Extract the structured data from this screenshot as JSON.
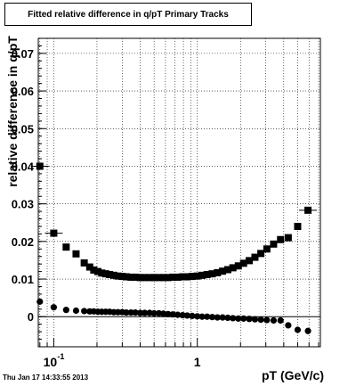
{
  "chart_data": {
    "type": "scatter",
    "title": "Fitted relative difference in q/pT  Primary Tracks",
    "xlabel": "pT (GeV/c)",
    "ylabel": "relative difference in q/pT",
    "x_scale": "log",
    "xlim": [
      0.078,
      7.2
    ],
    "ylim": [
      -0.008,
      0.074
    ],
    "grid": true,
    "x_tick_labels": [
      {
        "value": 0.1,
        "base": "10",
        "exp": "-1"
      },
      {
        "value": 1,
        "base": "1",
        "exp": ""
      }
    ],
    "y_ticks": [
      0,
      0.01,
      0.02,
      0.03,
      0.04,
      0.05,
      0.06,
      0.07
    ],
    "y_tick_labels": [
      "0",
      "0.01",
      "0.02",
      "0.03",
      "0.04",
      "0.05",
      "0.06",
      "0.07"
    ],
    "timestamp": "Thu Jan 17 14:33:55 2013",
    "series": [
      {
        "marker": "square",
        "x": [
          0.08,
          0.1,
          0.122,
          0.143,
          0.163,
          0.178,
          0.19,
          0.203,
          0.216,
          0.23,
          0.245,
          0.262,
          0.28,
          0.3,
          0.32,
          0.345,
          0.37,
          0.4,
          0.43,
          0.465,
          0.5,
          0.54,
          0.58,
          0.625,
          0.675,
          0.73,
          0.79,
          0.85,
          0.92,
          1.0,
          1.08,
          1.17,
          1.27,
          1.38,
          1.5,
          1.63,
          1.77,
          1.93,
          2.1,
          2.3,
          2.52,
          2.77,
          3.05,
          3.4,
          3.8,
          4.3,
          5.0,
          5.9
        ],
        "y": [
          0.04,
          0.0222,
          0.0185,
          0.0167,
          0.0143,
          0.0132,
          0.0124,
          0.012,
          0.0116,
          0.0114,
          0.0112,
          0.011,
          0.0108,
          0.0107,
          0.0106,
          0.0105,
          0.0105,
          0.0104,
          0.0104,
          0.0104,
          0.0104,
          0.0104,
          0.0104,
          0.0104,
          0.0105,
          0.0105,
          0.0106,
          0.0106,
          0.0107,
          0.0108,
          0.011,
          0.0112,
          0.0114,
          0.0117,
          0.0121,
          0.0125,
          0.013,
          0.0135,
          0.0142,
          0.0149,
          0.0158,
          0.0168,
          0.018,
          0.0193,
          0.0205,
          0.021,
          0.024,
          0.0283
        ]
      },
      {
        "marker": "circle",
        "x": [
          0.08,
          0.1,
          0.122,
          0.143,
          0.163,
          0.178,
          0.19,
          0.203,
          0.216,
          0.23,
          0.245,
          0.262,
          0.28,
          0.3,
          0.32,
          0.345,
          0.37,
          0.4,
          0.43,
          0.465,
          0.5,
          0.54,
          0.58,
          0.625,
          0.675,
          0.73,
          0.79,
          0.85,
          0.92,
          1.0,
          1.08,
          1.17,
          1.27,
          1.38,
          1.5,
          1.63,
          1.77,
          1.93,
          2.1,
          2.3,
          2.52,
          2.77,
          3.05,
          3.4,
          3.8,
          4.3,
          5.0,
          5.9
        ],
        "y": [
          0.004,
          0.0025,
          0.0018,
          0.0016,
          0.0015,
          0.0014,
          0.0014,
          0.0013,
          0.0013,
          0.0013,
          0.0013,
          0.0012,
          0.0012,
          0.0012,
          0.0011,
          0.0011,
          0.0011,
          0.001,
          0.001,
          0.001,
          0.0009,
          0.0009,
          0.0008,
          0.0007,
          0.0006,
          0.0005,
          0.0004,
          0.0003,
          0.0002,
          0.0001,
          0.0,
          0.0,
          -0.0001,
          -0.0002,
          -0.0002,
          -0.0003,
          -0.0004,
          -0.0005,
          -0.0005,
          -0.0006,
          -0.0007,
          -0.0008,
          -0.0009,
          -0.001,
          -0.001,
          -0.0023,
          -0.0035,
          -0.0038
        ]
      }
    ]
  }
}
